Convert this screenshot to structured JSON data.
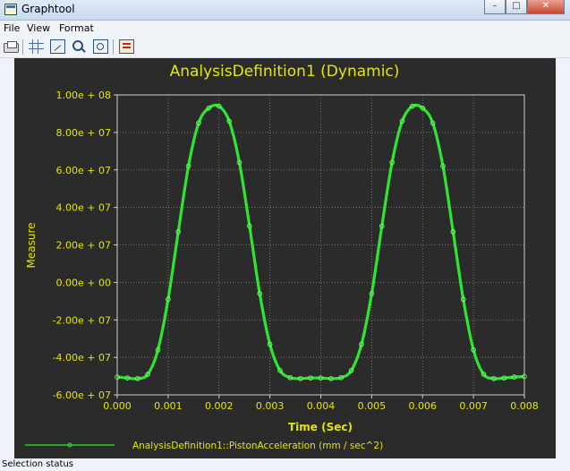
{
  "window": {
    "title": "Graphtool"
  },
  "menu": {
    "items": [
      "File",
      "View",
      "Format"
    ]
  },
  "toolbar": {
    "icons": [
      "printer-icon",
      "grid-icon",
      "frame-icon",
      "zoom-in-icon",
      "zoom-box-icon",
      "export-icon"
    ]
  },
  "chart_data": {
    "type": "line",
    "title": "AnalysisDefinition1 (Dynamic)",
    "xlabel": "Time (Sec)",
    "ylabel": "Measure",
    "xlim": [
      0,
      0.008
    ],
    "ylim": [
      -60000000,
      100000000
    ],
    "x_ticks": [
      "0.000",
      "0.001",
      "0.002",
      "0.003",
      "0.004",
      "0.005",
      "0.006",
      "0.007",
      "0.008"
    ],
    "y_ticks": [
      "1.00e + 08",
      "8.00e + 07",
      "6.00e + 07",
      "4.00e + 07",
      "2.00e + 07",
      "0.00e + 00",
      "-2.00e + 07",
      "-4.00e + 07",
      "-6.00e + 07"
    ],
    "grid": true,
    "legend_position": "bottom",
    "series": [
      {
        "name": "AnalysisDefinition1::PistonAcceleration (mm / sec^2)",
        "color": "#2ee62e",
        "x": [
          0,
          0.0002,
          0.0004,
          0.0006,
          0.0008,
          0.001,
          0.0012,
          0.0014,
          0.0016,
          0.0018,
          0.002,
          0.0022,
          0.0024,
          0.0026,
          0.0028,
          0.003,
          0.0032,
          0.0034,
          0.0036,
          0.0038,
          0.004,
          0.0042,
          0.0044,
          0.0046,
          0.0048,
          0.005,
          0.0052,
          0.0054,
          0.0056,
          0.0058,
          0.006,
          0.0062,
          0.0064,
          0.0066,
          0.0068,
          0.007,
          0.0072,
          0.0074,
          0.0076,
          0.0078,
          0.008
        ],
        "y": [
          -50500000,
          -51000000,
          -51300000,
          -49000000,
          -36000000,
          -9000000,
          27000000,
          62000000,
          85000000,
          93000000,
          94000000,
          86000000,
          64000000,
          30000000,
          -6000000,
          -33000000,
          -47000000,
          -50800000,
          -51300000,
          -51000000,
          -51000000,
          -51300000,
          -50800000,
          -47000000,
          -33000000,
          -6000000,
          30000000,
          64000000,
          86000000,
          94000000,
          93000000,
          85000000,
          62000000,
          27000000,
          -9000000,
          -36000000,
          -49000000,
          -51300000,
          -51000000,
          -50500000,
          -50200000
        ]
      }
    ]
  },
  "status": {
    "text": "Selection status"
  }
}
